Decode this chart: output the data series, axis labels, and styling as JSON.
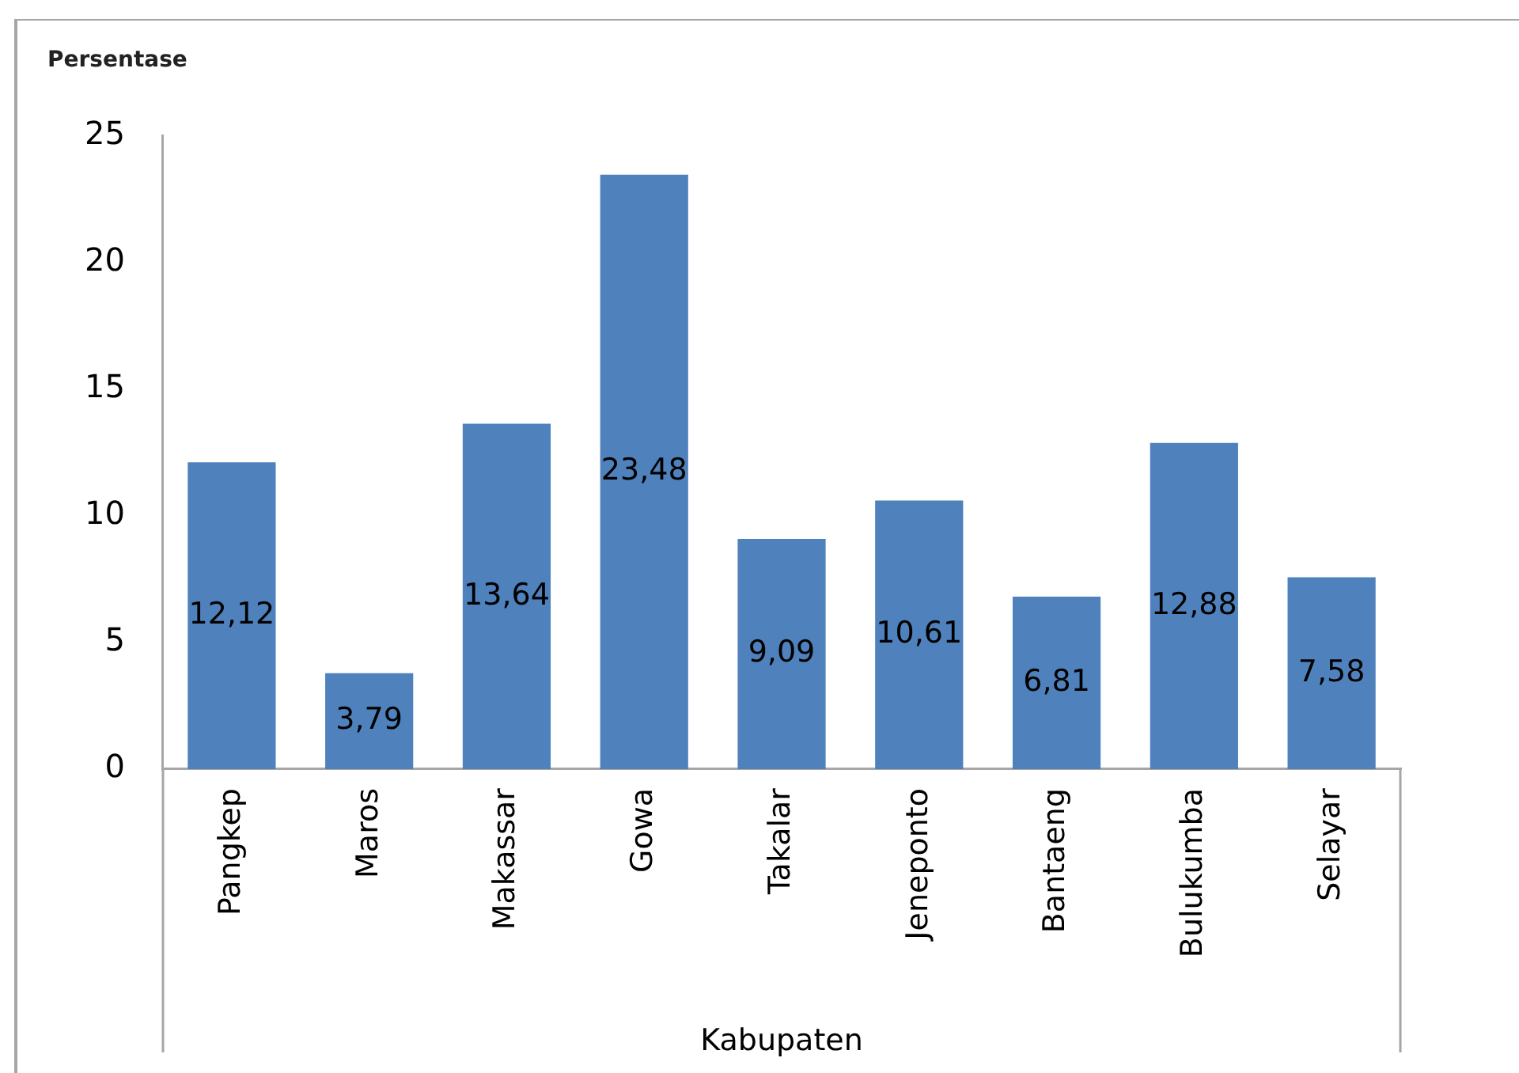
{
  "chart_data": {
    "type": "bar",
    "ylabel": "Persentase",
    "xlabel": "Kabupaten",
    "categories": [
      "Pangkep",
      "Maros",
      "Makassar",
      "Gowa",
      "Takalar",
      "Jeneponto",
      "Bantaeng",
      "Bulukumba",
      "Selayar"
    ],
    "values": [
      12.12,
      3.79,
      13.64,
      23.48,
      9.09,
      10.61,
      6.81,
      12.88,
      7.58
    ],
    "value_labels": [
      "12,12",
      "3,79",
      "13,64",
      "23,48",
      "9,09",
      "10,61",
      "6,81",
      "12,88",
      "7,58"
    ],
    "color": "#4f81bd",
    "ylim": [
      0,
      25
    ],
    "yticks": [
      0,
      5,
      10,
      15,
      20,
      25
    ]
  }
}
